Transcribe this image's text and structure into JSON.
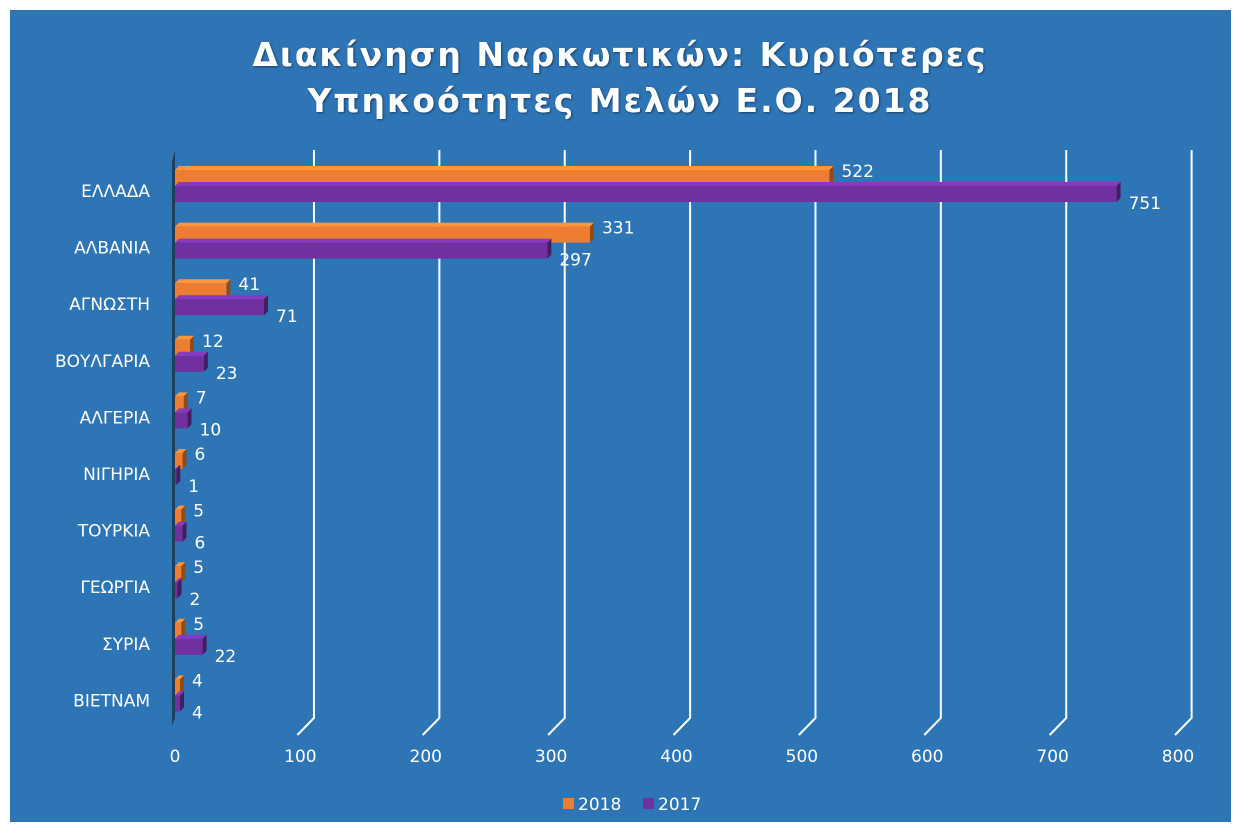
{
  "chart_data": {
    "type": "hbar3d",
    "title": "Διακίνηση Ναρκωτικών: Κυριότερες Υπηκοότητες Μελών Ε.Ο. 2018",
    "categories": [
      "ΕΛΛΑΔΑ",
      "ΑΛΒΑΝΙΑ",
      "ΑΓΝΩΣΤΗ",
      "ΒΟΥΛΓΑΡΙΑ",
      "ΑΛΓΕΡΙΑ",
      "ΝΙΓΗΡΙΑ",
      "ΤΟΥΡΚΙΑ",
      "ΓΕΩΡΓΙΑ",
      "ΣΥΡΙΑ",
      "ΒΙΕΤΝΑΜ"
    ],
    "series": [
      {
        "name": "2018",
        "color": "#ed7d31",
        "label_color": "#ed7d31",
        "values": [
          522,
          331,
          41,
          12,
          7,
          6,
          5,
          5,
          5,
          4
        ]
      },
      {
        "name": "2017",
        "color": "#7030a0",
        "label_color": "#ffffff",
        "values": [
          751,
          297,
          71,
          23,
          10,
          1,
          6,
          2,
          22,
          4
        ]
      }
    ],
    "xlim": [
      0,
      800
    ],
    "xticks": [
      0,
      100,
      200,
      300,
      400,
      500,
      600,
      700,
      800
    ],
    "grid": true,
    "legend": "bottom"
  }
}
